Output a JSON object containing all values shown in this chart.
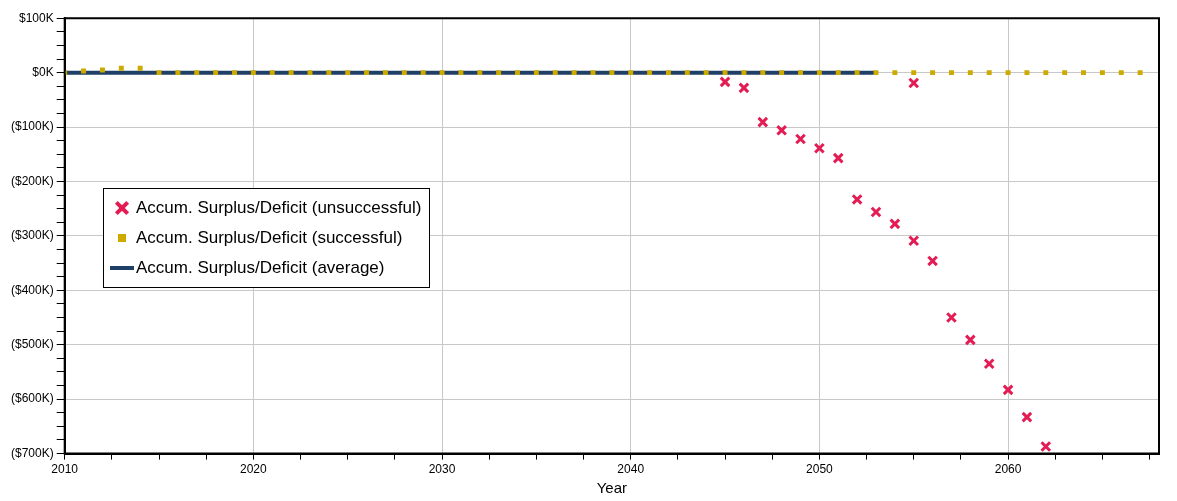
{
  "chart_data": {
    "type": "scatter",
    "xlabel": "Year",
    "xlim": [
      2010,
      2068
    ],
    "xticks": [
      2010,
      {
        "value": 2012.5,
        "label": null
      },
      {
        "value": 2015,
        "label": null
      },
      {
        "value": 2017.5,
        "label": null
      },
      2020,
      {
        "value": 2022.5,
        "label": null
      },
      {
        "value": 2025,
        "label": null
      },
      {
        "value": 2027.5,
        "label": null
      },
      2030,
      {
        "value": 2032.5,
        "label": null
      },
      {
        "value": 2035,
        "label": null
      },
      {
        "value": 2037.5,
        "label": null
      },
      2040,
      {
        "value": 2042.5,
        "label": null
      },
      {
        "value": 2045,
        "label": null
      },
      {
        "value": 2047.5,
        "label": null
      },
      2050,
      {
        "value": 2052.5,
        "label": null
      },
      {
        "value": 2055,
        "label": null
      },
      {
        "value": 2057.5,
        "label": null
      },
      2060,
      {
        "value": 2062.5,
        "label": null
      },
      {
        "value": 2065,
        "label": null
      },
      {
        "value": 2067.5,
        "label": null
      }
    ],
    "ylim": [
      -700000,
      100000
    ],
    "yticks": [
      {
        "value": 100000,
        "label": "$100K"
      },
      {
        "value": 75000,
        "label": null
      },
      {
        "value": 50000,
        "label": null
      },
      {
        "value": 25000,
        "label": null
      },
      {
        "value": 0,
        "label": "$0K"
      },
      {
        "value": -25000,
        "label": null
      },
      {
        "value": -50000,
        "label": null
      },
      {
        "value": -75000,
        "label": null
      },
      {
        "value": -100000,
        "label": "($100K)"
      },
      {
        "value": -125000,
        "label": null
      },
      {
        "value": -150000,
        "label": null
      },
      {
        "value": -175000,
        "label": null
      },
      {
        "value": -200000,
        "label": "($200K)"
      },
      {
        "value": -225000,
        "label": null
      },
      {
        "value": -250000,
        "label": null
      },
      {
        "value": -275000,
        "label": null
      },
      {
        "value": -300000,
        "label": "($300K)"
      },
      {
        "value": -325000,
        "label": null
      },
      {
        "value": -350000,
        "label": null
      },
      {
        "value": -375000,
        "label": null
      },
      {
        "value": -400000,
        "label": "($400K)"
      },
      {
        "value": -425000,
        "label": null
      },
      {
        "value": -450000,
        "label": null
      },
      {
        "value": -475000,
        "label": null
      },
      {
        "value": -500000,
        "label": "($500K)"
      },
      {
        "value": -525000,
        "label": null
      },
      {
        "value": -550000,
        "label": null
      },
      {
        "value": -575000,
        "label": null
      },
      {
        "value": -600000,
        "label": "($600K)"
      },
      {
        "value": -625000,
        "label": null
      },
      {
        "value": -650000,
        "label": null
      },
      {
        "value": -675000,
        "label": null
      },
      {
        "value": -700000,
        "label": "($700K)"
      }
    ],
    "grid": true,
    "legend": "left",
    "series": [
      {
        "name": "Accum. Surplus/Deficit (unsuccessful)",
        "color": "#e31c54",
        "marker": "cross",
        "x": [
          2045,
          2046,
          2047,
          2048,
          2049,
          2050,
          2051,
          2052,
          2053,
          2054,
          2055,
          2055,
          2056,
          2057,
          2058,
          2059,
          2060,
          2061,
          2062
        ],
        "values": [
          -17000,
          -28000,
          -91000,
          -106000,
          -122000,
          -139000,
          -157000,
          -233000,
          -256000,
          -278000,
          -19000,
          -309000,
          -346000,
          -450000,
          -491000,
          -535000,
          -583000,
          -633000,
          -687000
        ]
      },
      {
        "name": "Accum. Surplus/Deficit (successful)",
        "color": "#ccaa00",
        "marker": "square",
        "x": [
          2010,
          2011,
          2012,
          2013,
          2014,
          2015,
          2016,
          2017,
          2018,
          2019,
          2020,
          2021,
          2022,
          2023,
          2024,
          2025,
          2026,
          2027,
          2028,
          2029,
          2030,
          2031,
          2032,
          2033,
          2034,
          2035,
          2036,
          2037,
          2038,
          2039,
          2040,
          2041,
          2042,
          2043,
          2044,
          2045,
          2046,
          2047,
          2048,
          2049,
          2050,
          2051,
          2052,
          2053,
          2054,
          2055,
          2056,
          2057,
          2058,
          2059,
          2060,
          2061,
          2062,
          2063,
          2064,
          2065,
          2066,
          2067
        ],
        "values": [
          0,
          3000,
          5000,
          8000,
          8000,
          0,
          0,
          0,
          0,
          0,
          0,
          0,
          0,
          0,
          0,
          0,
          0,
          0,
          0,
          0,
          0,
          0,
          0,
          0,
          0,
          0,
          0,
          0,
          0,
          0,
          0,
          0,
          0,
          0,
          0,
          0,
          0,
          0,
          0,
          0,
          0,
          0,
          0,
          0,
          0,
          0,
          0,
          0,
          0,
          0,
          0,
          0,
          0,
          0,
          0,
          0,
          0,
          0
        ]
      },
      {
        "name": "Accum. Surplus/Deficit (average)",
        "type": "line",
        "color": "#1f3f66",
        "marker": "none",
        "x": [
          2010,
          2053
        ],
        "values": [
          0,
          0
        ]
      }
    ]
  }
}
